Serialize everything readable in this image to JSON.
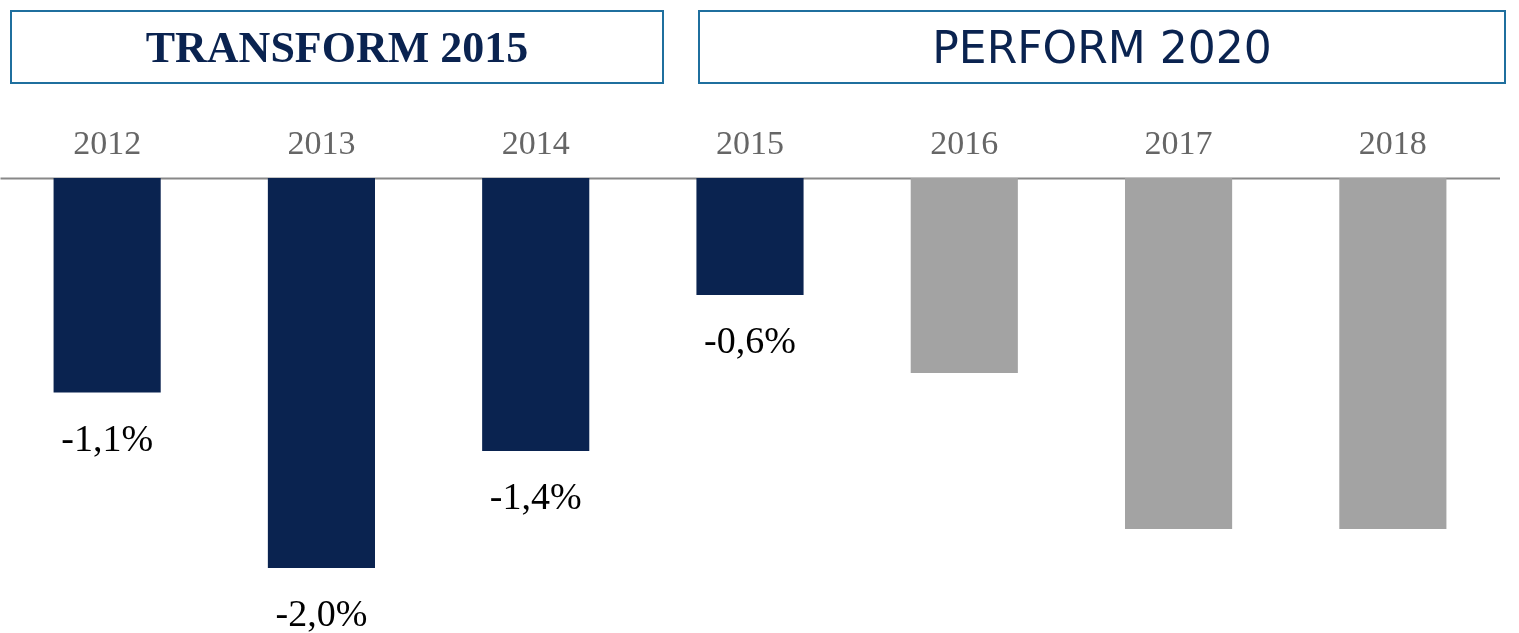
{
  "chart_data": {
    "type": "bar",
    "categories": [
      "2012",
      "2013",
      "2014",
      "2015",
      "2016",
      "2017",
      "2018"
    ],
    "values": [
      -1.1,
      -2.0,
      -1.4,
      -0.6,
      -1.0,
      -1.8,
      -1.8
    ],
    "colors": [
      "#0a2350",
      "#0a2350",
      "#0a2350",
      "#0a2350",
      "#a3a3a3",
      "#a3a3a3",
      "#a3a3a3"
    ],
    "value_labels": [
      "-1,1%",
      "-2,0%",
      "-1,4%",
      "-0,6%",
      null,
      null,
      null
    ],
    "annotations": [
      "TRANSFORM 2015",
      "PERFORM 2020"
    ],
    "grid": false
  }
}
